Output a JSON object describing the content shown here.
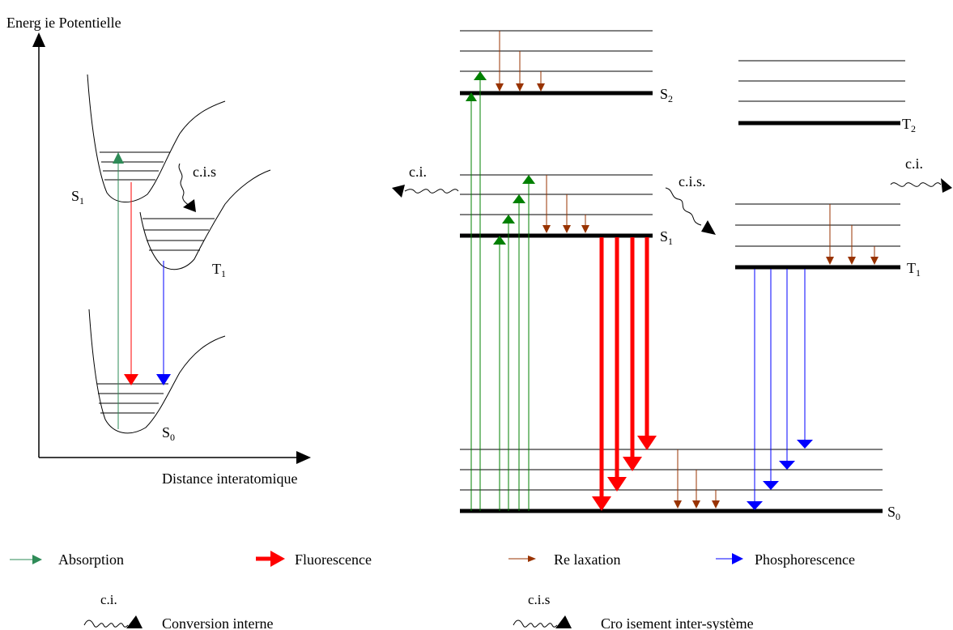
{
  "left_diagram": {
    "y_axis_label": "Energ ie Potentielle",
    "x_axis_label": "Distance interatomique",
    "s1_label": "S",
    "s1_sub": "1",
    "t1_label": "T",
    "t1_sub": "1",
    "s0_label": "S",
    "s0_sub": "0",
    "cis_label": "c.i.s"
  },
  "right_diagram": {
    "s2_label": "S",
    "s2_sub": "2",
    "t2_label": "T",
    "t2_sub": "2",
    "s1_label": "S",
    "s1_sub": "1",
    "t1_label": "T",
    "t1_sub": "1",
    "s0_label": "S",
    "s0_sub": "0",
    "ci_left_label": "c.i.",
    "cis_label": "c.i.s.",
    "ci_right_label": "c.i."
  },
  "legend": {
    "absorption": "Absorption",
    "fluorescence": "Fluorescence",
    "relaxation": "Re laxation",
    "phosphorescence": "Phosphorescence",
    "ci_abbrev": "c.i.",
    "ci_text": "Conversion interne",
    "cis_abbrev": "c.i.s",
    "cis_text": "Cro isement inter-système"
  },
  "colors": {
    "absorption": "#008000",
    "absorption_light": "#2e8b57",
    "fluorescence": "#ff0000",
    "relaxation": "#993300",
    "phosphorescence": "#0000ff",
    "line": "#000000"
  }
}
